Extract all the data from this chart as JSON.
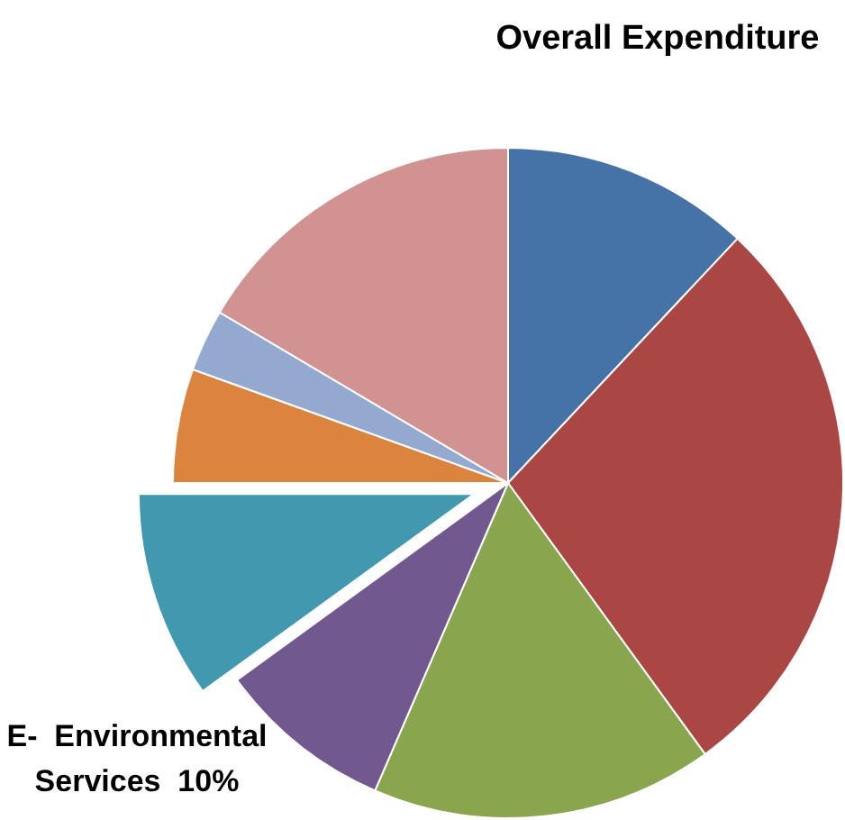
{
  "chart_data": {
    "type": "pie",
    "title": "Overall Expenditure",
    "categories": [
      null,
      null,
      null,
      null,
      "E-  Environmental Services",
      null,
      null,
      null
    ],
    "values": [
      12,
      28,
      16.5,
      8.5,
      10,
      5.5,
      3,
      16.5
    ],
    "value_labels": [
      null,
      null,
      null,
      null,
      "10%",
      null,
      null,
      null
    ],
    "colors": [
      "#4572a7",
      "#aa4643",
      "#89a54e",
      "#71588f",
      "#4198af",
      "#db843d",
      "#93a9cf",
      "#d19392"
    ]
  }
}
